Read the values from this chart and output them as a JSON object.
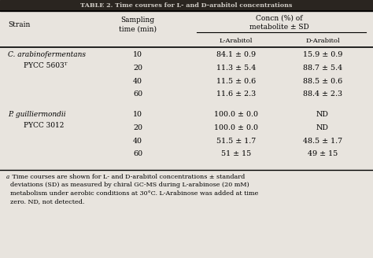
{
  "title": "TABLE 2. Time courses for L- and D-arabitol concentrations",
  "bg_color": "#e8e4de",
  "title_bg": "#2a2520",
  "title_text_color": "#d0ccc6",
  "rows": [
    [
      "C. arabinofermentans",
      "PYCC 5603ᵀ",
      "10",
      "84.1 ± 0.9",
      "15.9 ± 0.9"
    ],
    [
      "",
      "",
      "20",
      "11.3 ± 5.4",
      "88.7 ± 5.4"
    ],
    [
      "",
      "",
      "40",
      "11.5 ± 0.6",
      "88.5 ± 0.6"
    ],
    [
      "",
      "",
      "60",
      "11.6 ± 2.3",
      "88.4 ± 2.3"
    ],
    [
      "P. guilliermondii",
      "PYCC 3012",
      "10",
      "100.0 ± 0.0",
      "ND"
    ],
    [
      "",
      "",
      "20",
      "100.0 ± 0.0",
      "ND"
    ],
    [
      "",
      "",
      "40",
      "51.5 ± 1.7",
      "48.5 ± 1.7"
    ],
    [
      "",
      "",
      "60",
      "51 ± 15",
      "49 ± 15"
    ]
  ],
  "footnote_super": "a",
  "footnote_body": " Time courses are shown for L- and D-arabitol concentrations ± standard\ndeviations (SD) as measured by chiral GC-MS during L-arabinose (20 mM)\nmetabolism under aerobic conditions at 30°C. L-Arabinose was added at time\nzero. ND, not detected."
}
